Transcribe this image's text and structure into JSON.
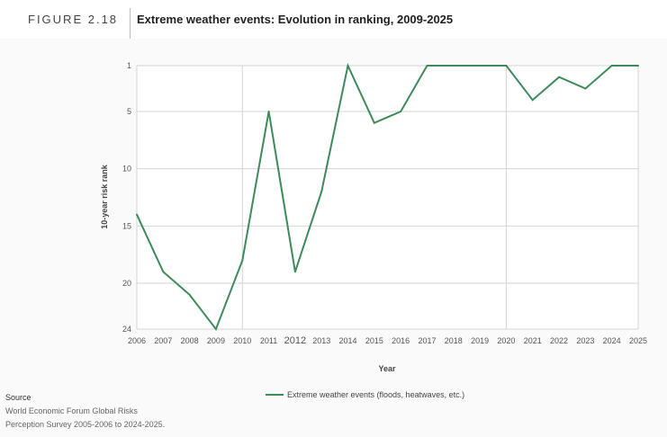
{
  "header": {
    "figure_label": "FIGURE 2.18",
    "title": "Extreme weather events: Evolution in ranking, 2009-2025"
  },
  "source": {
    "heading": "Source",
    "line1": "World Economic Forum Global Risks",
    "line2": "Perception Survey 2005-2006 to 2024-2025."
  },
  "colors": {
    "series": "#3e8a5a",
    "grid": "#d4d4d4",
    "axis_text": "#555555"
  },
  "chart_data": {
    "type": "line",
    "title": "Extreme weather events: Evolution in ranking, 2009-2025",
    "xlabel": "Year",
    "ylabel": "10-year risk rank",
    "y_inverted": true,
    "ylim": [
      24,
      1
    ],
    "y_ticks": [
      1,
      5,
      10,
      15,
      20,
      24
    ],
    "x": [
      "2006",
      "2007",
      "2008",
      "2009",
      "2010",
      "2011",
      "2012",
      "2013",
      "2014",
      "2015",
      "2016",
      "2017",
      "2018",
      "2019",
      "2020",
      "2021",
      "2022",
      "2023",
      "2024",
      "2025"
    ],
    "series": [
      {
        "name": "Extreme weather events (floods, heatwaves, etc.)",
        "values": [
          14,
          19,
          21,
          24,
          18,
          5,
          19,
          12,
          1,
          6,
          5,
          1,
          1,
          1,
          1,
          4,
          2,
          3,
          1,
          1
        ]
      }
    ],
    "grid": true,
    "legend_position": "bottom"
  }
}
